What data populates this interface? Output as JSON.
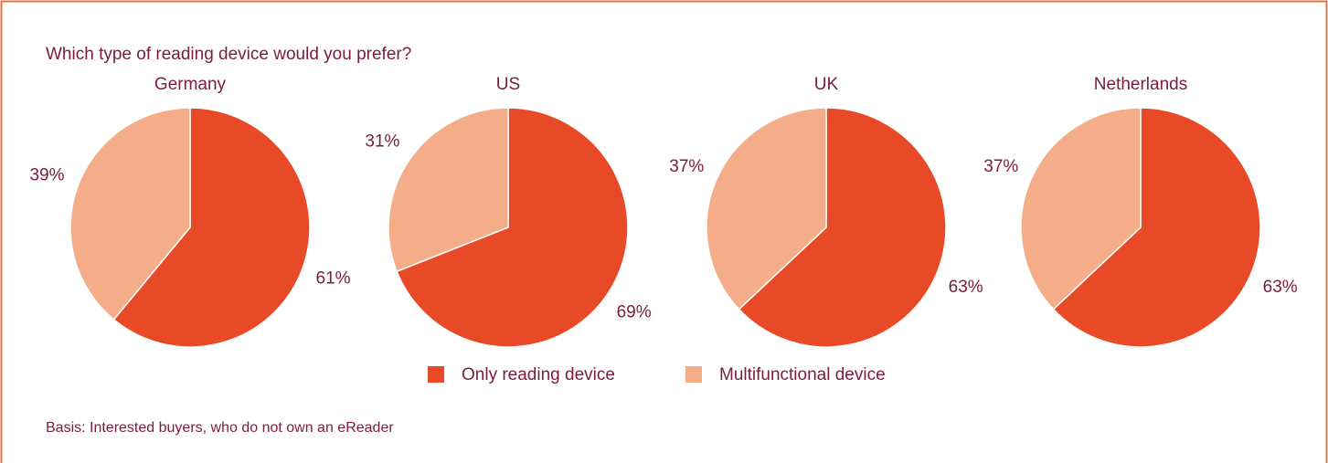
{
  "title": "Which type of reading device would you prefer?",
  "note": "Basis: Interested buyers, who do not own an eReader",
  "chart_data": [
    {
      "type": "pie",
      "title": "Germany",
      "categories": [
        "Only reading device",
        "Multifunctional device"
      ],
      "values": [
        61,
        39
      ],
      "value_labels": [
        "61%",
        "39%"
      ],
      "colors": [
        "#e84a27",
        "#f4ad88"
      ]
    },
    {
      "type": "pie",
      "title": "US",
      "categories": [
        "Only reading device",
        "Multifunctional device"
      ],
      "values": [
        69,
        31
      ],
      "value_labels": [
        "69%",
        "31%"
      ],
      "colors": [
        "#e84a27",
        "#f4ad88"
      ]
    },
    {
      "type": "pie",
      "title": "UK",
      "categories": [
        "Only reading device",
        "Multifunctional device"
      ],
      "values": [
        63,
        37
      ],
      "value_labels": [
        "63%",
        "37%"
      ],
      "colors": [
        "#e84a27",
        "#f4ad88"
      ]
    },
    {
      "type": "pie",
      "title": "Netherlands",
      "categories": [
        "Only reading device",
        "Multifunctional device"
      ],
      "values": [
        63,
        37
      ],
      "value_labels": [
        "63%",
        "37%"
      ],
      "colors": [
        "#e84a27",
        "#f4ad88"
      ]
    }
  ]
}
